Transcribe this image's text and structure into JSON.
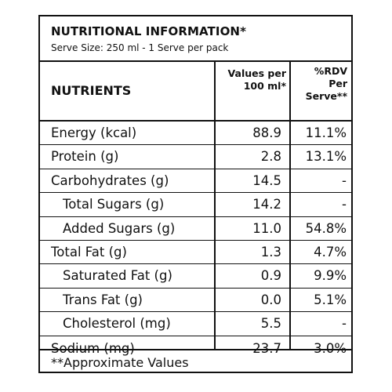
{
  "panel": {
    "title": "NUTRITIONAL INFORMATION*",
    "serve_size": "Serve Size: 250 ml - 1 Serve per pack"
  },
  "header": {
    "nutrients": "NUTRIENTS",
    "values_line1": "Values per",
    "values_line2": "100 ml*",
    "rdv_line1": "%RDV",
    "rdv_line2": "Per",
    "rdv_line3": "Serve**"
  },
  "rows": [
    {
      "name": "Energy (kcal)",
      "value": "88.9",
      "rdv": "11.1%"
    },
    {
      "name": "Protein (g)",
      "value": "2.8",
      "rdv": "13.1%"
    },
    {
      "name": "Carbohydrates (g)",
      "value": "14.5",
      "rdv": "-"
    },
    {
      "name": "Total Sugars (g)",
      "value": "14.2",
      "rdv": "-"
    },
    {
      "name": "Added Sugars (g)",
      "value": "11.0",
      "rdv": "54.8%"
    },
    {
      "name": "Total Fat (g)",
      "value": "1.3",
      "rdv": "4.7%"
    },
    {
      "name": "Saturated Fat (g)",
      "value": "0.9",
      "rdv": "9.9%"
    },
    {
      "name": "Trans Fat (g)",
      "value": "0.0",
      "rdv": "5.1%"
    },
    {
      "name": "Cholesterol (mg)",
      "value": "5.5",
      "rdv": "-"
    },
    {
      "name": "Sodium (mg)",
      "value": "23.7",
      "rdv": "3.0%"
    }
  ],
  "footer": {
    "note": "**Approximate Values"
  }
}
